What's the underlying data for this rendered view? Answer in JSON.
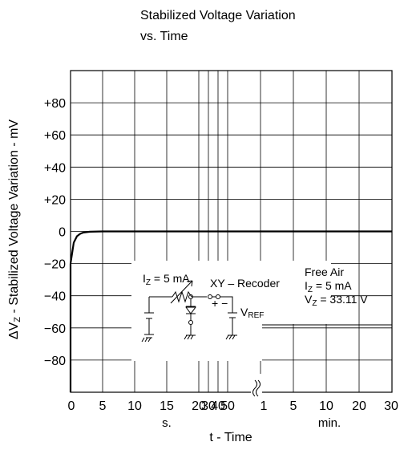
{
  "chart_data": {
    "type": "line",
    "title": "Stabilized Voltage Variation",
    "subtitle": "vs. Time",
    "ylabel_prefix": "ΔV",
    "ylabel_sub": "Z",
    "ylabel_rest": " - Stabilized Voltage Variation - mV",
    "xlabel": "t - Time",
    "y_ticks": [
      "+80",
      "+60",
      "+40",
      "+20",
      "0",
      "−20",
      "−40",
      "−60",
      "−80"
    ],
    "y_tick_values": [
      80,
      60,
      40,
      20,
      0,
      -20,
      -40,
      -60,
      -80
    ],
    "ylim": [
      -100,
      100
    ],
    "x_tick_labels": [
      "0",
      "5",
      "10",
      "15",
      "20",
      "30",
      "40",
      "50",
      "1",
      "5",
      "10",
      "20",
      "30"
    ],
    "x_unit_seconds": "s.",
    "x_unit_minutes": "min.",
    "grid": true,
    "series": [
      {
        "x": [
          "0 s",
          "0.5 s",
          "1 s",
          "1.5 s",
          "2 s",
          "3 s",
          "5 s",
          "30 min"
        ],
        "y": [
          -20,
          -7,
          -3,
          -1.5,
          -0.7,
          -0.2,
          0,
          0
        ]
      }
    ],
    "annotations": {
      "current": "I",
      "current_sub": "Z",
      "current_rest": " = 5 mA",
      "recorder": "XY – Recoder",
      "polarity": "+ −",
      "vref": "V",
      "vref_sub": "REF",
      "free_air": "Free Air",
      "iz_sym": "I",
      "iz_sub": "Z",
      "iz_rest": " = 5 mA",
      "vz_sym": "V",
      "vz_sub": "Z",
      "vz_rest": " = 33.11 V"
    }
  }
}
